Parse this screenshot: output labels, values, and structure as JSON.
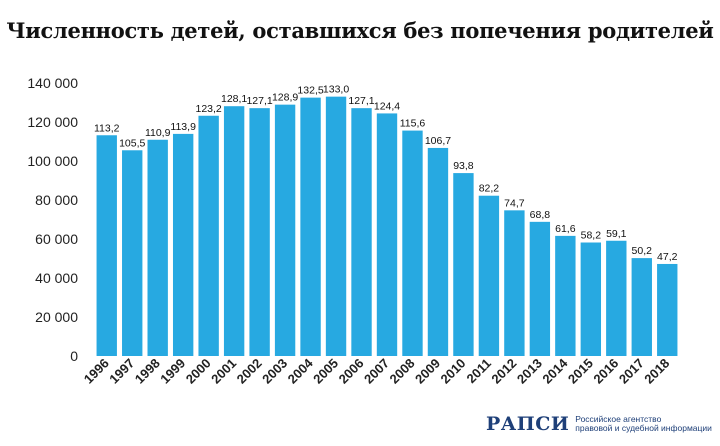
{
  "chart_data": {
    "type": "bar",
    "title": "Численность детей, оставшихся без попечения родителей",
    "xlabel": "",
    "ylabel": "",
    "ylim": [
      0,
      140000
    ],
    "yticks": [
      0,
      20000,
      40000,
      60000,
      80000,
      100000,
      120000,
      140000
    ],
    "ytick_labels": [
      "0",
      "20 000",
      "40 000",
      "60 000",
      "80 000",
      "100 000",
      "120 000",
      "140 000"
    ],
    "categories": [
      "1996",
      "1997",
      "1998",
      "1999",
      "2000",
      "2001",
      "2002",
      "2003",
      "2004",
      "2005",
      "2006",
      "2007",
      "2008",
      "2009",
      "2010",
      "2011",
      "2012",
      "2013",
      "2014",
      "2015",
      "2016",
      "2017",
      "2018"
    ],
    "values": [
      113200,
      105500,
      110900,
      113900,
      123200,
      128100,
      127100,
      128900,
      132500,
      133000,
      127100,
      124400,
      115600,
      106700,
      93800,
      82200,
      74700,
      68800,
      61600,
      58200,
      59100,
      50200,
      47200
    ],
    "data_labels": [
      "113,2",
      "105,5",
      "110,9",
      "113,9",
      "123,2",
      "128,1",
      "127,1",
      "128,9",
      "132,5",
      "133,0",
      "127,1",
      "124,4",
      "115,6",
      "106,7",
      "93,8",
      "82,2",
      "74,7",
      "68,8",
      "61,6",
      "58,2",
      "59,1",
      "50,2",
      "47,2"
    ],
    "bar_color": "#27a9e1",
    "grid": false,
    "legend": "none"
  },
  "footer": {
    "logo_mark": "РАПСИ",
    "logo_line1": "Российское агентство",
    "logo_line2": "правовой и судебной информации"
  },
  "colors": {
    "bar": "#27a9e1",
    "text": "#111111",
    "logo": "#1e3f78"
  }
}
